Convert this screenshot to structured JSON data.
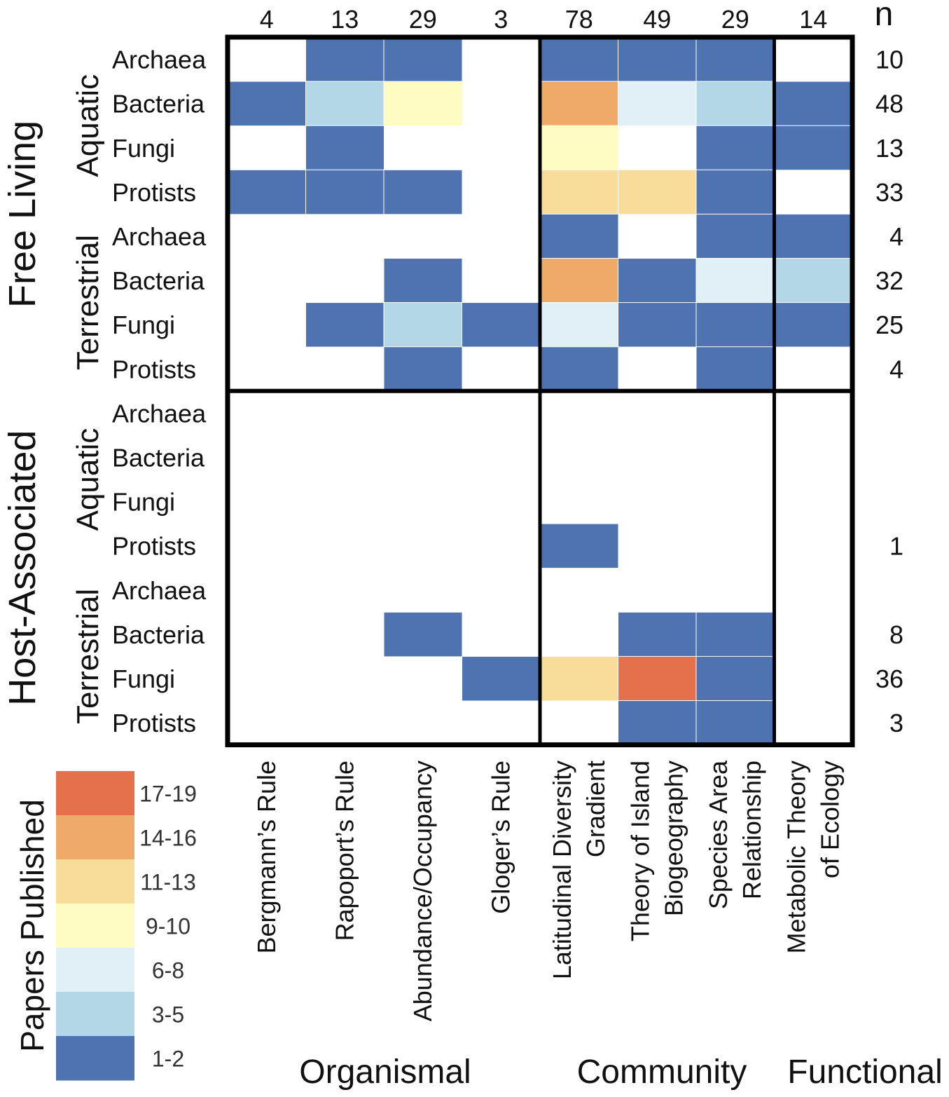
{
  "chart_data": {
    "type": "heatmap",
    "legend": {
      "title": "Papers Published",
      "bins": [
        {
          "label": "17-19",
          "color": "#e4714c"
        },
        {
          "label": "14-16",
          "color": "#efaa6a"
        },
        {
          "label": "11-13",
          "color": "#f8dd9a"
        },
        {
          "label": "9-10",
          "color": "#fefcc3"
        },
        {
          "label": "6-8",
          "color": "#e1f0f6"
        },
        {
          "label": "3-5",
          "color": "#b4d7e7"
        },
        {
          "label": "1-2",
          "color": "#4e73b0"
        }
      ]
    },
    "n_label": "n",
    "columns": [
      {
        "label_lines": [
          "Bergmann’s Rule"
        ],
        "n": "4"
      },
      {
        "label_lines": [
          "Rapoport’s Rule"
        ],
        "n": "13"
      },
      {
        "label_lines": [
          "Abundance/Occupancy"
        ],
        "n": "29"
      },
      {
        "label_lines": [
          "Gloger’s Rule"
        ],
        "n": "3"
      },
      {
        "label_lines": [
          "Latitudinal Diversity",
          "Gradient"
        ],
        "n": "78"
      },
      {
        "label_lines": [
          "Theory of Island",
          "Biogeography"
        ],
        "n": "49"
      },
      {
        "label_lines": [
          "Species Area",
          "Relationship"
        ],
        "n": "29"
      },
      {
        "label_lines": [
          "Metabolic Theory",
          "of Ecology"
        ],
        "n": "14"
      }
    ],
    "column_groups": [
      {
        "label": "Organismal",
        "start": 0,
        "end": 3
      },
      {
        "label": "Community",
        "start": 4,
        "end": 6
      },
      {
        "label": "Functional",
        "start": 7,
        "end": 7
      }
    ],
    "row_groups": [
      {
        "label": "Free Living",
        "start": 0,
        "end": 7
      },
      {
        "label": "Host-Associated",
        "start": 8,
        "end": 15
      }
    ],
    "row_subgroups": [
      {
        "label": "Aquatic",
        "start": 0,
        "end": 3
      },
      {
        "label": "Terrestrial",
        "start": 4,
        "end": 7
      },
      {
        "label": "Aquatic",
        "start": 8,
        "end": 11
      },
      {
        "label": "Terrestrial",
        "start": 12,
        "end": 15
      }
    ],
    "rows": [
      {
        "label": "Archaea",
        "n": "10",
        "cells": [
          0,
          1,
          1,
          0,
          1,
          1,
          1,
          0
        ]
      },
      {
        "label": "Bacteria",
        "n": "48",
        "cells": [
          1,
          2,
          4,
          0,
          6,
          3,
          2,
          1
        ]
      },
      {
        "label": "Fungi",
        "n": "13",
        "cells": [
          0,
          1,
          0,
          0,
          4,
          0,
          1,
          1
        ]
      },
      {
        "label": "Protists",
        "n": "33",
        "cells": [
          1,
          1,
          1,
          0,
          5,
          5,
          1,
          0
        ]
      },
      {
        "label": "Archaea",
        "n": "4",
        "cells": [
          0,
          0,
          0,
          0,
          1,
          0,
          1,
          1
        ]
      },
      {
        "label": "Bacteria",
        "n": "32",
        "cells": [
          0,
          0,
          1,
          0,
          6,
          1,
          3,
          2
        ]
      },
      {
        "label": "Fungi",
        "n": "25",
        "cells": [
          0,
          1,
          2,
          1,
          3,
          1,
          1,
          1
        ]
      },
      {
        "label": "Protists",
        "n": "4",
        "cells": [
          0,
          0,
          1,
          0,
          1,
          0,
          1,
          0
        ]
      },
      {
        "label": "Archaea",
        "n": "",
        "cells": [
          0,
          0,
          0,
          0,
          0,
          0,
          0,
          0
        ]
      },
      {
        "label": "Bacteria",
        "n": "",
        "cells": [
          0,
          0,
          0,
          0,
          0,
          0,
          0,
          0
        ]
      },
      {
        "label": "Fungi",
        "n": "",
        "cells": [
          0,
          0,
          0,
          0,
          0,
          0,
          0,
          0
        ]
      },
      {
        "label": "Protists",
        "n": "1",
        "cells": [
          0,
          0,
          0,
          0,
          1,
          0,
          0,
          0
        ]
      },
      {
        "label": "Archaea",
        "n": "",
        "cells": [
          0,
          0,
          0,
          0,
          0,
          0,
          0,
          0
        ]
      },
      {
        "label": "Bacteria",
        "n": "8",
        "cells": [
          0,
          0,
          1,
          0,
          0,
          1,
          1,
          0
        ]
      },
      {
        "label": "Fungi",
        "n": "36",
        "cells": [
          0,
          0,
          0,
          1,
          5,
          7,
          1,
          0
        ]
      },
      {
        "label": "Protists",
        "n": "3",
        "cells": [
          0,
          0,
          0,
          0,
          0,
          1,
          1,
          0
        ]
      }
    ],
    "cell_value_key": {
      "0": "none",
      "1": "1-2",
      "2": "3-5",
      "3": "6-8",
      "4": "9-10",
      "5": "11-13",
      "6": "14-16",
      "7": "17-19"
    }
  }
}
